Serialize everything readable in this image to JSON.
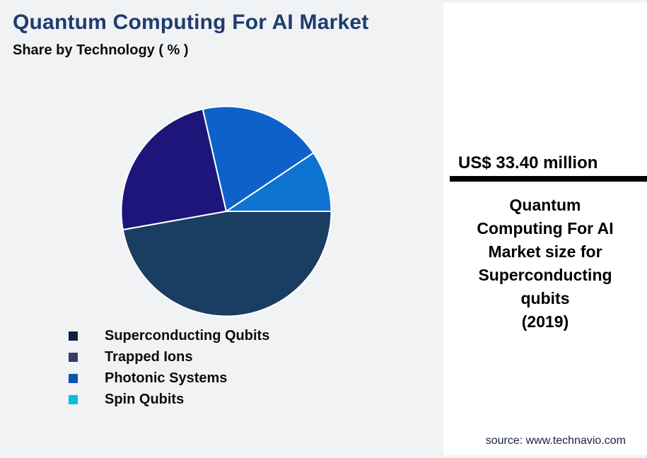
{
  "header": {
    "title": "Quantum Computing For AI Market",
    "subtitle": "Share by Technology ( % )"
  },
  "chart_data": {
    "type": "pie",
    "title": "Quantum Computing For AI Market",
    "subtitle": "Share by Technology ( % )",
    "unit": "%",
    "start_angle_deg": 0,
    "direction": "clockwise",
    "legend_position": "bottom-left",
    "segments": [
      {
        "label": "Superconducting Qubits",
        "value": 47.2,
        "color": "#1A3D62",
        "legend_color": "#0E2140"
      },
      {
        "label": "Trapped Ions",
        "value": 24.2,
        "color": "#1E157A",
        "legend_color": "#323D6E"
      },
      {
        "label": "Photonic Systems",
        "value": 19.2,
        "color": "#0D61C9",
        "legend_color": "#0B54AE"
      },
      {
        "label": "Spin Qubits",
        "value": 9.4,
        "color": "#0F73D2",
        "legend_color": "#00C0E3"
      }
    ]
  },
  "side_panel": {
    "headline": "US$ 33.40 million",
    "description_lines": [
      "Quantum",
      "Computing For AI",
      "Market size for",
      "Superconducting",
      "qubits",
      "(2019)"
    ],
    "source": "source: www.technavio.com"
  },
  "colors": {
    "page_bg": "#F1F2F4",
    "panel_bg": "#FFFFFF",
    "title_text": "#1E3C6F",
    "divider": "#000000",
    "slice_border": "#FFFFFF"
  }
}
